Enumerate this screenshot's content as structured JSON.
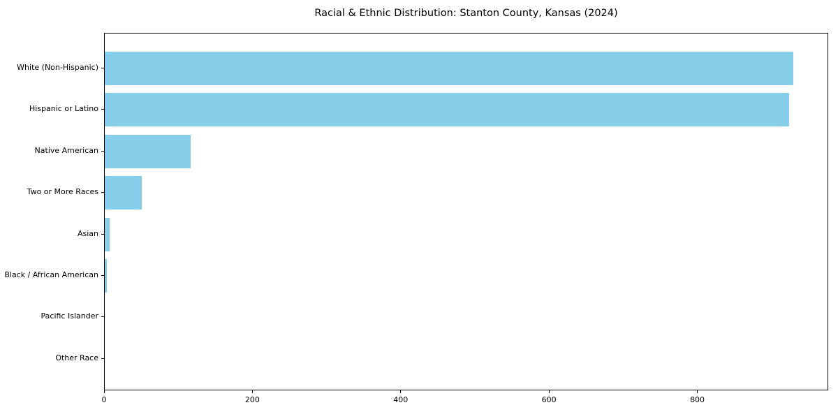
{
  "chart_data": {
    "type": "bar",
    "orientation": "horizontal",
    "title": "Racial & Ethnic Distribution: Stanton County, Kansas (2024)",
    "categories": [
      "White (Non-Hispanic)",
      "Hispanic or Latino",
      "Native American",
      "Two or More Races",
      "Asian",
      "Black / African American",
      "Pacific Islander",
      "Other Race"
    ],
    "values": [
      930,
      925,
      116,
      50,
      7,
      3,
      0,
      0
    ],
    "xlabel": "",
    "ylabel": "",
    "xlim": [
      0,
      976.5
    ],
    "x_ticks": [
      0,
      200,
      400,
      600,
      800
    ],
    "bar_color": "#87CEEB",
    "axis_color": "#000000",
    "background_color": "#ffffff",
    "grid": false,
    "legend_position": "none"
  }
}
